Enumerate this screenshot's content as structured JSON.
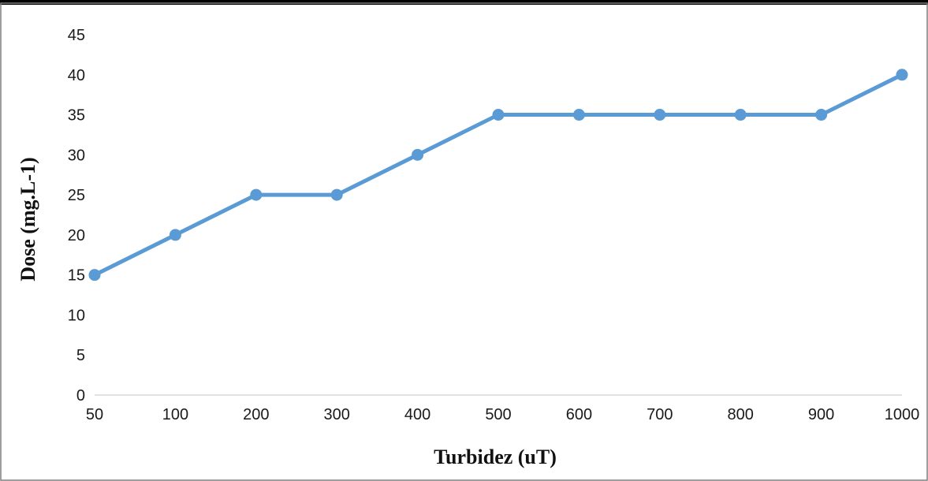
{
  "chart_data": {
    "type": "line",
    "categories": [
      "50",
      "100",
      "200",
      "300",
      "400",
      "500",
      "600",
      "700",
      "800",
      "900",
      "1000"
    ],
    "series": [
      {
        "values": [
          15,
          20,
          25,
          25,
          30,
          35,
          35,
          35,
          35,
          35,
          40
        ]
      }
    ],
    "xlabel": "Turbidez (uT)",
    "ylabel": "Dose (mg.L-1)",
    "ylim": [
      0,
      45
    ],
    "yticks": [
      0,
      5,
      10,
      15,
      20,
      25,
      30,
      35,
      40,
      45
    ],
    "grid": false,
    "legend": "none",
    "colors": {
      "series": "#5b9bd5",
      "axis": "#d9d9d9",
      "frame": "#7f7f7f"
    }
  }
}
